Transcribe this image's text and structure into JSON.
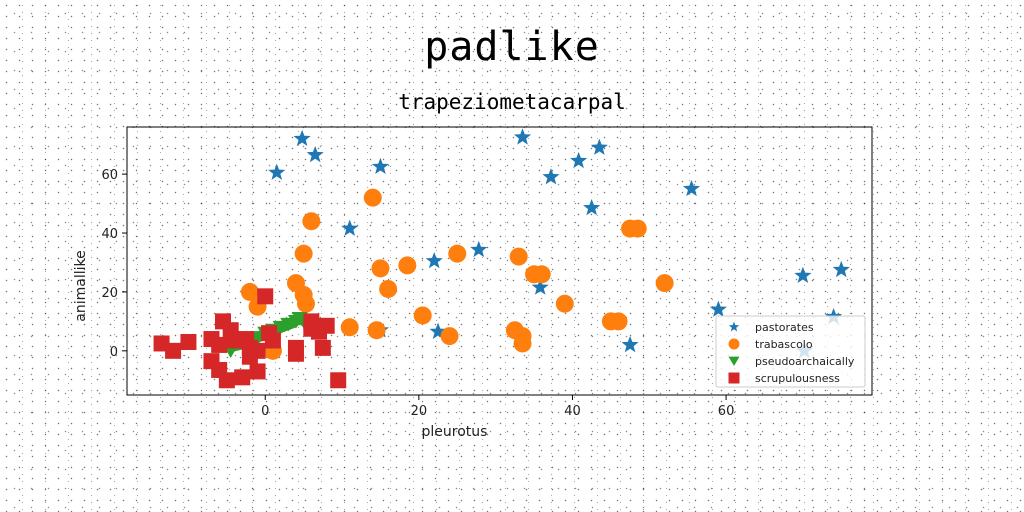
{
  "page": {
    "suptitle": "padlike"
  },
  "chart_data": {
    "type": "scatter",
    "title": "trapeziometacarpal",
    "xlabel": "pleurotus",
    "ylabel": "animallike",
    "xlim": [
      -18,
      79
    ],
    "ylim": [
      -15,
      76
    ],
    "xticks": [
      0,
      20,
      40,
      60
    ],
    "yticks": [
      0,
      20,
      40,
      60
    ],
    "grid": false,
    "legend": {
      "placement": "lower-right"
    },
    "series": [
      {
        "name": "pastorates",
        "marker": "star",
        "color": "#1f77b4",
        "points": [
          [
            1.5,
            60.5
          ],
          [
            4.8,
            72
          ],
          [
            6.5,
            66.5
          ],
          [
            11,
            41.5
          ],
          [
            15,
            62.5
          ],
          [
            15,
            7
          ],
          [
            22,
            30.5
          ],
          [
            22.5,
            6.5
          ],
          [
            27.8,
            34.3
          ],
          [
            33.5,
            72.5
          ],
          [
            35.8,
            21.5
          ],
          [
            37.2,
            59
          ],
          [
            40.8,
            64.5
          ],
          [
            42.5,
            48.5
          ],
          [
            43.5,
            69
          ],
          [
            47.5,
            2
          ],
          [
            55.5,
            55
          ],
          [
            59,
            14
          ],
          [
            70,
            25.5
          ],
          [
            70.2,
            0
          ],
          [
            74,
            11.5
          ],
          [
            75,
            27.5
          ]
        ]
      },
      {
        "name": "trabascolo",
        "marker": "circle",
        "color": "#ff7f0e",
        "points": [
          [
            -2,
            20
          ],
          [
            -1,
            15
          ],
          [
            1,
            0
          ],
          [
            4,
            23
          ],
          [
            5,
            33
          ],
          [
            5,
            19
          ],
          [
            5.3,
            16
          ],
          [
            6,
            44
          ],
          [
            11,
            8
          ],
          [
            14,
            52
          ],
          [
            14.5,
            7
          ],
          [
            15,
            28
          ],
          [
            16,
            21
          ],
          [
            18.5,
            29
          ],
          [
            20.5,
            12
          ],
          [
            24,
            5
          ],
          [
            25,
            33
          ],
          [
            32.5,
            7
          ],
          [
            33,
            32
          ],
          [
            33.5,
            5
          ],
          [
            33.5,
            2.5
          ],
          [
            35,
            26
          ],
          [
            36,
            26
          ],
          [
            39,
            16
          ],
          [
            45,
            10
          ],
          [
            46,
            10
          ],
          [
            47.5,
            41.5
          ],
          [
            48.5,
            41.5
          ],
          [
            52,
            23
          ]
        ]
      },
      {
        "name": "pseudoarchaically",
        "marker": "triangle",
        "color": "#2ca02c",
        "points": [
          [
            -4.5,
            0
          ],
          [
            -4.5,
            1.5
          ],
          [
            -3,
            2.5
          ],
          [
            -2,
            3.5
          ],
          [
            -1,
            4.5
          ],
          [
            0,
            6
          ],
          [
            1,
            7
          ],
          [
            2,
            8
          ],
          [
            3,
            9
          ],
          [
            4,
            10
          ],
          [
            4.5,
            11
          ],
          [
            5,
            10
          ]
        ]
      },
      {
        "name": "scrupulousness",
        "marker": "square",
        "color": "#d62728",
        "points": [
          [
            -13.5,
            2.5
          ],
          [
            -12,
            0
          ],
          [
            -10,
            3
          ],
          [
            -7,
            4
          ],
          [
            -7,
            -3.5
          ],
          [
            -6,
            2
          ],
          [
            -6,
            -6.5
          ],
          [
            -5.5,
            10
          ],
          [
            -5,
            -10
          ],
          [
            -4.5,
            7
          ],
          [
            -4,
            3.5
          ],
          [
            -3,
            -9
          ],
          [
            -2.5,
            4
          ],
          [
            -2,
            1
          ],
          [
            -2,
            -2
          ],
          [
            -1,
            0
          ],
          [
            -1,
            -7
          ],
          [
            0,
            18.5
          ],
          [
            0.5,
            6
          ],
          [
            1,
            3.5
          ],
          [
            4,
            -1
          ],
          [
            4,
            1
          ],
          [
            6,
            10
          ],
          [
            6,
            7.5
          ],
          [
            7,
            6.5
          ],
          [
            7.5,
            1
          ],
          [
            8,
            8.5
          ],
          [
            9.5,
            -10
          ]
        ]
      }
    ]
  }
}
